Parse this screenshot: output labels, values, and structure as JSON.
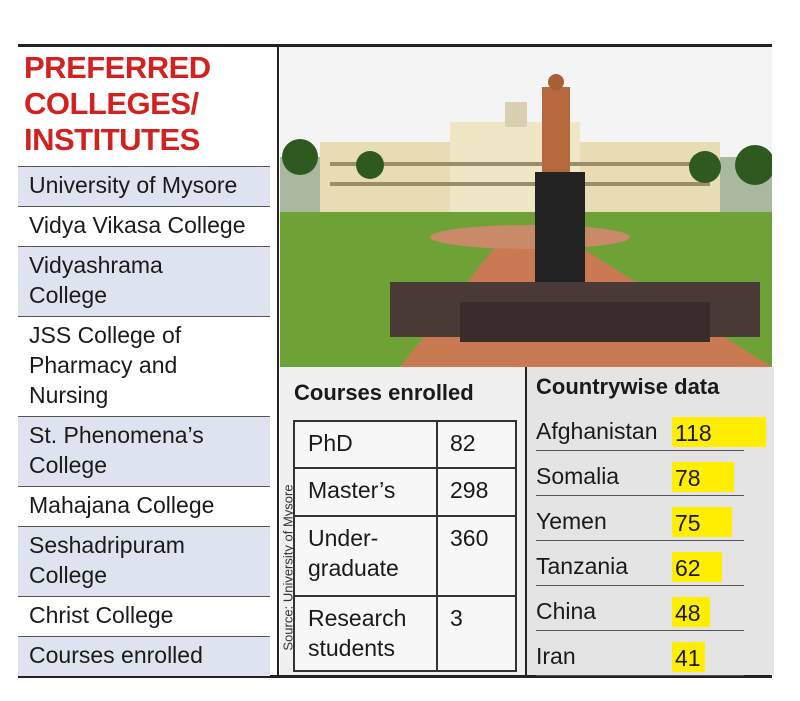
{
  "title": {
    "lines": [
      "PREFERRED",
      "COLLEGES/",
      "INSTITUTES"
    ]
  },
  "colleges": [
    [
      "University of Mysore"
    ],
    [
      "Vidya Vikasa College"
    ],
    [
      "Vidyashrama",
      "College"
    ],
    [
      "JSS College of",
      "Pharmacy and",
      "Nursing"
    ],
    [
      "St. Phenomena’s",
      "College"
    ],
    [
      "Mahajana College"
    ],
    [
      "Seshadripuram",
      "College"
    ],
    [
      "Christ College"
    ],
    [
      "Courses enrolled"
    ]
  ],
  "courses": {
    "title": "Courses enrolled",
    "rows": [
      {
        "name": [
          "PhD"
        ],
        "value": 82
      },
      {
        "name": [
          "Master’s"
        ],
        "value": 298
      },
      {
        "name": [
          "Under-",
          "graduate"
        ],
        "value": 360
      },
      {
        "name": [
          "Research",
          "students"
        ],
        "value": 3
      }
    ]
  },
  "source": "Source: University of Mysore",
  "countrywise": {
    "title": "Countrywise data",
    "color": "#ffee00",
    "rows": [
      {
        "country": "Afghanistan",
        "value": 118
      },
      {
        "country": "Somalia",
        "value": 78
      },
      {
        "country": "Yemen",
        "value": 75
      },
      {
        "country": "Tanzania",
        "value": 62
      },
      {
        "country": "China",
        "value": 48
      },
      {
        "country": "Iran",
        "value": 41
      }
    ]
  }
}
